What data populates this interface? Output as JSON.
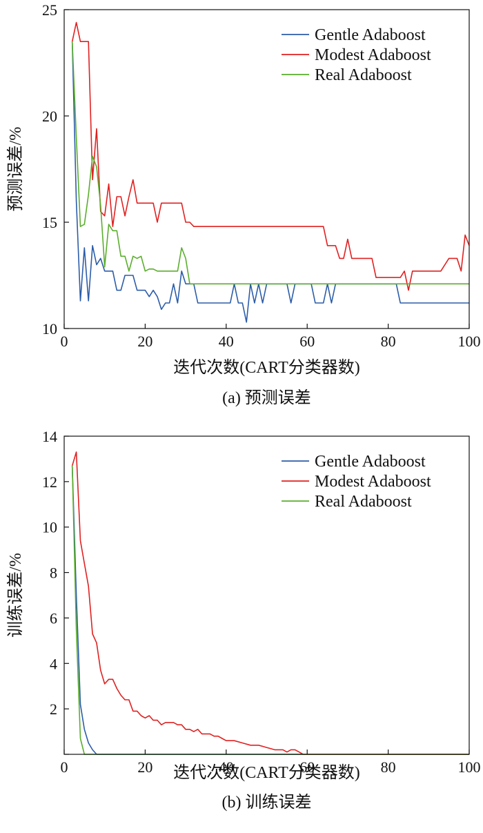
{
  "chart_data": [
    {
      "type": "line",
      "caption": "(a) 预测误差",
      "xlabel": "迭代次数(CART分类器数)",
      "ylabel": "预测误差/%",
      "xlim": [
        0,
        100
      ],
      "ylim": [
        10,
        25
      ],
      "xticks": [
        0,
        20,
        40,
        60,
        80,
        100
      ],
      "yticks": [
        10,
        15,
        20,
        25
      ],
      "legend_position": "top-right",
      "series": [
        {
          "name": "Gentle Adaboost",
          "color": "#2b5ca8",
          "x": [
            2,
            3,
            4,
            5,
            6,
            7,
            8,
            9,
            10,
            11,
            12,
            13,
            14,
            15,
            16,
            17,
            18,
            19,
            20,
            21,
            22,
            23,
            24,
            25,
            26,
            27,
            28,
            29,
            30,
            31,
            32,
            33,
            34,
            35,
            36,
            37,
            38,
            39,
            40,
            41,
            42,
            43,
            44,
            45,
            46,
            47,
            48,
            49,
            50,
            51,
            52,
            53,
            54,
            55,
            56,
            57,
            58,
            59,
            60,
            61,
            62,
            63,
            64,
            65,
            66,
            67,
            68,
            69,
            70,
            75,
            80,
            81,
            82,
            83,
            84,
            85,
            90,
            95,
            100
          ],
          "y": [
            23.5,
            16.0,
            11.3,
            13.8,
            11.3,
            13.9,
            13.0,
            13.3,
            12.7,
            12.7,
            12.7,
            11.8,
            11.8,
            12.5,
            12.5,
            12.5,
            11.8,
            11.8,
            11.8,
            11.5,
            11.8,
            11.5,
            10.9,
            11.2,
            11.2,
            12.1,
            11.2,
            12.7,
            12.1,
            12.1,
            12.1,
            11.2,
            11.2,
            11.2,
            11.2,
            11.2,
            11.2,
            11.2,
            11.2,
            11.2,
            12.1,
            11.2,
            11.2,
            10.3,
            12.1,
            11.2,
            12.1,
            11.2,
            12.1,
            12.1,
            12.1,
            12.1,
            12.1,
            12.1,
            11.2,
            12.1,
            12.1,
            12.1,
            12.1,
            12.1,
            11.2,
            11.2,
            11.2,
            12.1,
            11.2,
            12.1,
            12.1,
            12.1,
            12.1,
            12.1,
            12.1,
            12.1,
            12.1,
            11.2,
            11.2,
            11.2,
            11.2,
            11.2,
            11.2
          ]
        },
        {
          "name": "Modest Adaboost",
          "color": "#e02020",
          "x": [
            2,
            3,
            4,
            5,
            6,
            7,
            8,
            9,
            10,
            11,
            12,
            13,
            14,
            15,
            16,
            17,
            18,
            19,
            20,
            21,
            22,
            23,
            24,
            25,
            26,
            27,
            28,
            29,
            30,
            31,
            32,
            33,
            34,
            35,
            40,
            45,
            50,
            55,
            60,
            64,
            65,
            66,
            67,
            68,
            69,
            70,
            71,
            72,
            73,
            74,
            75,
            76,
            77,
            78,
            79,
            80,
            81,
            82,
            83,
            84,
            85,
            86,
            87,
            90,
            93,
            95,
            96,
            97,
            98,
            99,
            100
          ],
          "y": [
            23.5,
            24.4,
            23.5,
            23.5,
            23.5,
            17.0,
            19.4,
            15.5,
            15.3,
            16.8,
            14.8,
            16.2,
            16.2,
            15.3,
            16.2,
            17.0,
            15.9,
            15.9,
            15.9,
            15.9,
            15.9,
            15.0,
            15.9,
            15.9,
            15.9,
            15.9,
            15.9,
            15.9,
            15.0,
            15.0,
            14.8,
            14.8,
            14.8,
            14.8,
            14.8,
            14.8,
            14.8,
            14.8,
            14.8,
            14.8,
            13.9,
            13.9,
            13.9,
            13.3,
            13.3,
            14.2,
            13.3,
            13.3,
            13.3,
            13.3,
            13.3,
            13.3,
            12.4,
            12.4,
            12.4,
            12.4,
            12.4,
            12.4,
            12.4,
            12.7,
            11.8,
            12.7,
            12.7,
            12.7,
            12.7,
            13.3,
            13.3,
            13.3,
            12.7,
            14.4,
            13.9
          ]
        },
        {
          "name": "Real Adaboost",
          "color": "#5aad2c",
          "x": [
            2,
            3,
            4,
            5,
            6,
            7,
            8,
            9,
            10,
            11,
            12,
            13,
            14,
            15,
            16,
            17,
            18,
            19,
            20,
            21,
            22,
            23,
            24,
            25,
            26,
            27,
            28,
            29,
            30,
            31,
            32,
            35,
            40,
            50,
            60,
            70,
            80,
            90,
            100
          ],
          "y": [
            23.5,
            19.0,
            14.8,
            14.9,
            16.3,
            18.1,
            17.6,
            15.8,
            12.9,
            14.9,
            14.6,
            14.6,
            13.4,
            13.4,
            12.7,
            13.4,
            13.3,
            13.4,
            12.7,
            12.8,
            12.8,
            12.7,
            12.7,
            12.7,
            12.7,
            12.7,
            12.7,
            13.8,
            13.3,
            12.1,
            12.1,
            12.1,
            12.1,
            12.1,
            12.1,
            12.1,
            12.1,
            12.1,
            12.1
          ]
        }
      ]
    },
    {
      "type": "line",
      "caption": "(b) 训练误差",
      "xlabel": "迭代次数(CART分类器数)",
      "ylabel": "训练误差/%",
      "xlim": [
        0,
        100
      ],
      "ylim": [
        0,
        14
      ],
      "xticks": [
        0,
        20,
        40,
        60,
        80,
        100
      ],
      "yticks": [
        0,
        2,
        4,
        6,
        8,
        10,
        12,
        14
      ],
      "ytick_labels": [
        "",
        "2",
        "4",
        "6",
        "8",
        "10",
        "12",
        "14"
      ],
      "legend_position": "top-right",
      "series": [
        {
          "name": "Gentle Adaboost",
          "color": "#2b5ca8",
          "x": [
            2,
            3,
            4,
            5,
            6,
            7,
            8,
            10,
            20,
            40,
            60,
            80,
            100
          ],
          "y": [
            12.7,
            7.0,
            2.2,
            1.1,
            0.5,
            0.2,
            0.0,
            0.0,
            0.0,
            0.0,
            0.0,
            0.0,
            0.0
          ]
        },
        {
          "name": "Modest Adaboost",
          "color": "#e02020",
          "x": [
            2,
            3,
            4,
            5,
            6,
            7,
            8,
            9,
            10,
            11,
            12,
            13,
            14,
            15,
            16,
            17,
            18,
            19,
            20,
            21,
            22,
            23,
            24,
            25,
            26,
            27,
            28,
            29,
            30,
            31,
            32,
            33,
            34,
            35,
            36,
            37,
            38,
            39,
            40,
            42,
            44,
            46,
            48,
            50,
            52,
            54,
            55,
            56,
            57,
            58,
            59,
            60,
            70,
            80,
            90,
            100
          ],
          "y": [
            12.7,
            13.3,
            9.4,
            8.4,
            7.4,
            5.3,
            4.9,
            3.7,
            3.1,
            3.3,
            3.3,
            2.9,
            2.6,
            2.4,
            2.4,
            1.9,
            1.9,
            1.7,
            1.6,
            1.7,
            1.5,
            1.5,
            1.3,
            1.4,
            1.4,
            1.4,
            1.3,
            1.3,
            1.1,
            1.1,
            1.0,
            1.1,
            0.9,
            0.9,
            0.9,
            0.8,
            0.8,
            0.7,
            0.6,
            0.6,
            0.5,
            0.4,
            0.4,
            0.3,
            0.2,
            0.2,
            0.1,
            0.2,
            0.2,
            0.1,
            0.0,
            0.0,
            0.0,
            0.0,
            0.0,
            0.0
          ]
        },
        {
          "name": "Real Adaboost",
          "color": "#5aad2c",
          "x": [
            2,
            3,
            4,
            5,
            6,
            10,
            20,
            40,
            60,
            80,
            100
          ],
          "y": [
            12.7,
            5.5,
            0.7,
            0.0,
            0.0,
            0.0,
            0.0,
            0.0,
            0.0,
            0.0,
            0.0
          ]
        }
      ]
    }
  ]
}
